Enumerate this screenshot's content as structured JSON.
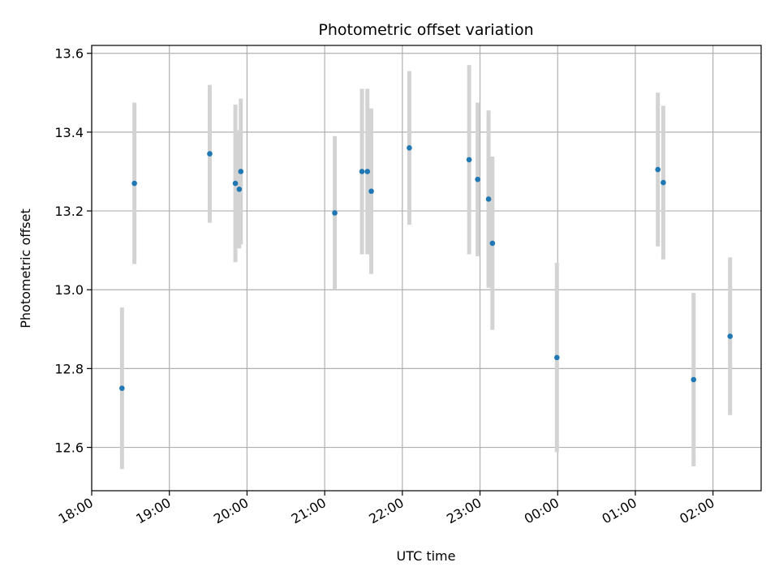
{
  "chart_data": {
    "type": "scatter",
    "title": "Photometric offset variation",
    "xlabel": "UTC time",
    "ylabel": "Photometric offset",
    "x_ticks": [
      "18:00",
      "19:00",
      "20:00",
      "21:00",
      "22:00",
      "23:00",
      "00:00",
      "01:00",
      "02:00"
    ],
    "x_tick_hours": [
      18,
      19,
      20,
      21,
      22,
      23,
      24,
      25,
      26
    ],
    "y_ticks": [
      "12.6",
      "12.8",
      "13.0",
      "13.2",
      "13.4",
      "13.6"
    ],
    "y_tick_values": [
      12.6,
      12.8,
      13.0,
      13.2,
      13.4,
      13.6
    ],
    "xlim_hours": [
      18.0,
      26.62
    ],
    "ylim": [
      12.49,
      13.62
    ],
    "grid": true,
    "colors": {
      "point": "#1f77b4",
      "errorbar": "#d3d3d3",
      "grid": "#b0b0b0"
    },
    "points": [
      {
        "time": "18:23",
        "hour": 18.39,
        "y": 12.75,
        "err": 0.205
      },
      {
        "time": "18:33",
        "hour": 18.55,
        "y": 13.27,
        "err": 0.205
      },
      {
        "time": "19:31",
        "hour": 19.52,
        "y": 13.345,
        "err": 0.175
      },
      {
        "time": "19:51",
        "hour": 19.85,
        "y": 13.27,
        "err": 0.2
      },
      {
        "time": "19:54",
        "hour": 19.9,
        "y": 13.255,
        "err": 0.15
      },
      {
        "time": "19:55",
        "hour": 19.92,
        "y": 13.3,
        "err": 0.185
      },
      {
        "time": "21:08",
        "hour": 21.13,
        "y": 13.195,
        "err": 0.195
      },
      {
        "time": "21:29",
        "hour": 21.48,
        "y": 13.3,
        "err": 0.21
      },
      {
        "time": "21:33",
        "hour": 21.55,
        "y": 13.3,
        "err": 0.21
      },
      {
        "time": "21:36",
        "hour": 21.6,
        "y": 13.25,
        "err": 0.21
      },
      {
        "time": "22:05",
        "hour": 22.09,
        "y": 13.36,
        "err": 0.195
      },
      {
        "time": "22:51",
        "hour": 22.86,
        "y": 13.33,
        "err": 0.24
      },
      {
        "time": "22:58",
        "hour": 22.97,
        "y": 13.28,
        "err": 0.195
      },
      {
        "time": "23:07",
        "hour": 23.11,
        "y": 13.23,
        "err": 0.225
      },
      {
        "time": "23:09",
        "hour": 23.16,
        "y": 13.118,
        "err": 0.22
      },
      {
        "time": "23:59",
        "hour": 23.99,
        "y": 12.828,
        "err": 0.24
      },
      {
        "time": "01:17",
        "hour": 25.29,
        "y": 13.305,
        "err": 0.195
      },
      {
        "time": "01:21",
        "hour": 25.36,
        "y": 13.272,
        "err": 0.195
      },
      {
        "time": "01:45",
        "hour": 25.75,
        "y": 12.772,
        "err": 0.22
      },
      {
        "time": "02:13",
        "hour": 26.22,
        "y": 12.882,
        "err": 0.2
      }
    ]
  }
}
